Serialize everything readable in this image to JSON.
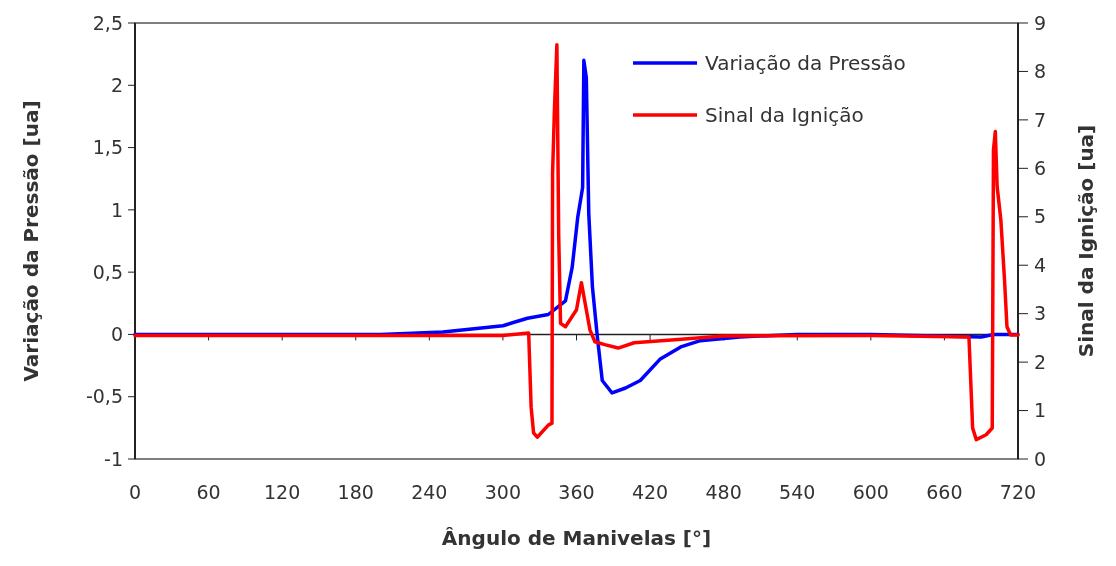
{
  "chart_data": {
    "type": "line",
    "xlabel": "Ângulo de Manivelas  [°]",
    "ylabel": "Variação da Pressão [ua]",
    "y2label": "Sinal da Ignição [ua]",
    "xlim": [
      0,
      720
    ],
    "xticks": [
      0,
      60,
      120,
      180,
      240,
      300,
      360,
      420,
      480,
      540,
      600,
      660,
      720
    ],
    "ylim": [
      -1,
      2.5
    ],
    "yticks": [
      {
        "value": -1,
        "label": "-1"
      },
      {
        "value": -0.5,
        "label": "-0,5"
      },
      {
        "value": 0,
        "label": "0"
      },
      {
        "value": 0.5,
        "label": "0,5"
      },
      {
        "value": 1,
        "label": "1"
      },
      {
        "value": 1.5,
        "label": "1,5"
      },
      {
        "value": 2,
        "label": "2"
      },
      {
        "value": 2.5,
        "label": "2,5"
      }
    ],
    "y2lim": [
      0,
      9
    ],
    "y2ticks": [
      0,
      1,
      2,
      3,
      4,
      5,
      6,
      7,
      8,
      9
    ],
    "legend": "top right",
    "line_style": "solid",
    "marker": "none",
    "series": [
      {
        "name": "Variação da Pressão",
        "color": "#0000ff",
        "x": [
          0,
          100,
          200,
          251,
          300,
          320,
          337,
          351,
          356.5,
          361,
          365,
          366,
          368,
          370,
          373,
          377,
          381,
          389,
          400,
          412,
          428,
          445,
          461,
          493,
          540,
          600,
          690,
          700,
          720
        ],
        "values": [
          0,
          0,
          0,
          0.02,
          0.07,
          0.13,
          0.16,
          0.27,
          0.54,
          0.94,
          1.18,
          2.2,
          2.06,
          0.97,
          0.38,
          -0.02,
          -0.37,
          -0.47,
          -0.43,
          -0.37,
          -0.2,
          -0.1,
          -0.05,
          -0.02,
          0,
          0,
          -0.02,
          0,
          0
        ]
      },
      {
        "name": "Sinal da Ignição",
        "color": "#ff0000",
        "axis": "y2",
        "x": [
          0,
          100,
          200,
          300,
          321,
          323,
          325,
          328,
          337,
          340,
          340.5,
          342,
          344,
          345.5,
          347,
          351,
          360,
          364,
          367,
          371,
          375,
          383,
          394,
          407,
          440,
          480,
          600,
          680,
          681,
          683,
          686,
          694,
          699,
          700,
          701.5,
          703,
          706,
          709,
          711,
          714,
          720
        ],
        "values": [
          2.55,
          2.55,
          2.55,
          2.55,
          2.6,
          1.07,
          0.54,
          0.45,
          0.7,
          0.74,
          5.9,
          7.2,
          8.55,
          4.6,
          2.8,
          2.73,
          3.08,
          3.64,
          3.22,
          2.66,
          2.42,
          2.36,
          2.29,
          2.4,
          2.46,
          2.54,
          2.55,
          2.52,
          1.9,
          0.64,
          0.4,
          0.5,
          0.64,
          6.38,
          6.76,
          5.62,
          4.94,
          3.7,
          2.73,
          2.56,
          2.56
        ]
      }
    ]
  }
}
